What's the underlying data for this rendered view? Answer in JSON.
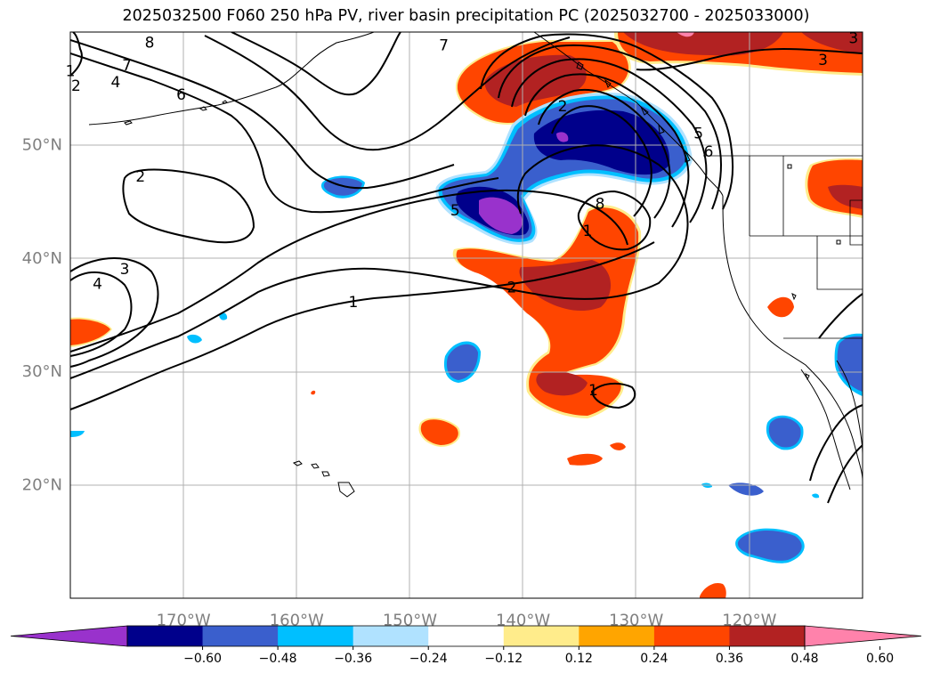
{
  "title": "2025032500 F060 250 hPa PV, river basin precipitation PC (2025032700 - 2025033000)",
  "map": {
    "lon_range": [
      -180,
      -110
    ],
    "lat_range": [
      10,
      60
    ],
    "lat_ticks": [
      {
        "value": 20,
        "label": "20°N"
      },
      {
        "value": 30,
        "label": "30°N"
      },
      {
        "value": 40,
        "label": "40°N"
      },
      {
        "value": 50,
        "label": "50°N"
      }
    ],
    "lon_ticks": [
      {
        "value": -170,
        "label": "170°W"
      },
      {
        "value": -160,
        "label": "160°W"
      },
      {
        "value": -150,
        "label": "150°W"
      },
      {
        "value": -140,
        "label": "140°W"
      },
      {
        "value": -130,
        "label": "130°W"
      },
      {
        "value": -120,
        "label": "120°W"
      }
    ],
    "gridlines": true
  },
  "colorbar": {
    "colors": [
      "#9932cc",
      "#00008b",
      "#3a5fcd",
      "#00bfff",
      "#b0e2ff",
      "#ffffff",
      "#ffec8b",
      "#ffa500",
      "#ff4500",
      "#b22222",
      "#ff82ab"
    ],
    "labels": [
      "−0.60",
      "−0.48",
      "−0.36",
      "−0.24",
      "−0.12",
      "0.12",
      "0.24",
      "0.36",
      "0.48",
      "0.60"
    ],
    "extend": "both"
  },
  "pv_contour_labels": [
    {
      "text": "1",
      "lon": -180,
      "lat": 56.5
    },
    {
      "text": "8",
      "lon": -173,
      "lat": 59
    },
    {
      "text": "7",
      "lon": -175,
      "lat": 57
    },
    {
      "text": "4",
      "lon": -176,
      "lat": 55.5
    },
    {
      "text": "2",
      "lon": -179.5,
      "lat": 55.2
    },
    {
      "text": "6",
      "lon": -170.2,
      "lat": 54.4
    },
    {
      "text": "7",
      "lon": -147,
      "lat": 58.8
    },
    {
      "text": "2",
      "lon": -173.8,
      "lat": 47.2
    },
    {
      "text": "5",
      "lon": -146,
      "lat": 44.2
    },
    {
      "text": "3",
      "lon": -175.2,
      "lat": 39
    },
    {
      "text": "4",
      "lon": -177.6,
      "lat": 37.7
    },
    {
      "text": "2",
      "lon": -141,
      "lat": 37.4
    },
    {
      "text": "1",
      "lon": -155,
      "lat": 36.1
    },
    {
      "text": "2",
      "lon": -136.5,
      "lat": 53.4
    },
    {
      "text": "5",
      "lon": -124.5,
      "lat": 51
    },
    {
      "text": "6",
      "lon": -123.6,
      "lat": 49.4
    },
    {
      "text": "3",
      "lon": -113.5,
      "lat": 57.5
    },
    {
      "text": "8",
      "lon": -133.2,
      "lat": 44.8
    },
    {
      "text": "1",
      "lon": -134.3,
      "lat": 42.4
    },
    {
      "text": "1",
      "lon": -133.8,
      "lat": 28.3
    },
    {
      "text": "3",
      "lon": -110.8,
      "lat": 59.4
    }
  ]
}
